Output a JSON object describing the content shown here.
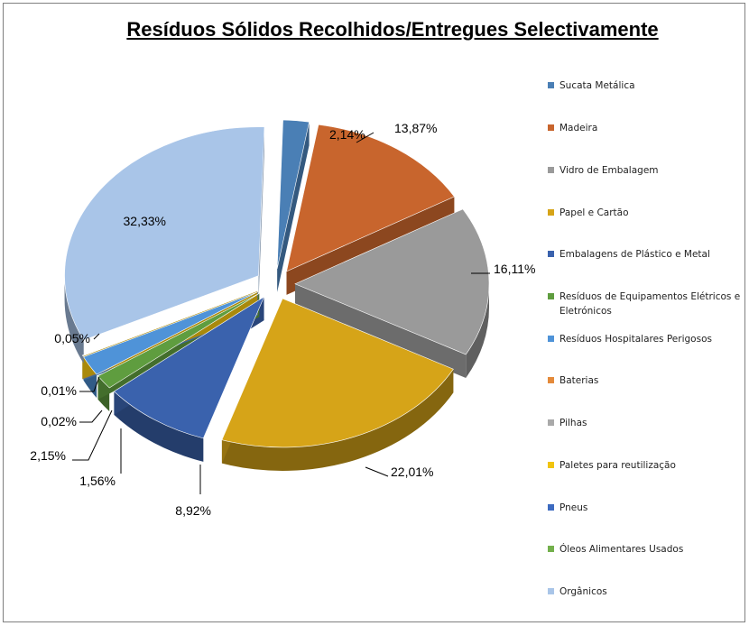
{
  "colors": {
    "Sucata Metálica": "#4a7fb5",
    "Madeira": "#c8652d",
    "Vidro de Embalagem": "#9a9a9a",
    "Papel e Cartão": "#d6a418",
    "Embalagens de Plástico e Metal": "#3a62ad",
    "Resíduos de Equipamentos Elétricos e Eletrónicos": "#5f9d3f",
    "Resíduos Hospitalares Perigosos": "#4f93d8",
    "Baterias": "#e48a3a",
    "Pilhas": "#a9a9a9",
    "Paletes para reutilização": "#f1c40f",
    "Pneus": "#3d6bc0",
    "Óleos Alimentares Usados": "#73b04c",
    "Orgânicos": "#a9c5e8"
  },
  "chart_data": {
    "type": "pie",
    "title": "Resíduos Sólidos Recolhidos/Entregues Selectivamente",
    "legend_position": "right",
    "exploded": true,
    "three_d": true,
    "slices": [
      {
        "label": "Sucata Metálica",
        "value": 2.14,
        "data_label": "2,14%"
      },
      {
        "label": "Madeira",
        "value": 13.87,
        "data_label": "13,87%"
      },
      {
        "label": "Vidro de Embalagem",
        "value": 16.11,
        "data_label": "16,11%"
      },
      {
        "label": "Papel e Cartão",
        "value": 22.01,
        "data_label": "22,01%"
      },
      {
        "label": "Embalagens de Plástico e Metal",
        "value": 8.92,
        "data_label": "8,92%"
      },
      {
        "label": "Resíduos de Equipamentos Elétricos e Eletrónicos",
        "value": 1.56,
        "data_label": "1,56%"
      },
      {
        "label": "Resíduos Hospitalares Perigosos",
        "value": 2.15,
        "data_label": "2,15%"
      },
      {
        "label": "Baterias",
        "value": 0.02,
        "data_label": "0,02%"
      },
      {
        "label": "Pilhas",
        "value": 0.01,
        "data_label": "0,01%"
      },
      {
        "label": "Paletes para reutilização",
        "value": 0.05,
        "data_label": "0,05%"
      },
      {
        "label": "Pneus",
        "value": 0.0,
        "data_label": ""
      },
      {
        "label": "Óleos Alimentares Usados",
        "value": 0.0,
        "data_label": ""
      },
      {
        "label": "Orgânicos",
        "value": 32.33,
        "data_label": "32,33%"
      }
    ]
  },
  "legend_labels": {
    "sucata": "Sucata Metálica",
    "madeira": "Madeira",
    "vidro": "Vidro de Embalagem",
    "papel": "Papel e Cartão",
    "embalagens": "Embalagens de Plástico e Metal",
    "reee": "Resíduos de Equipamentos Elétricos e Eletrónicos",
    "hospitalares": "Resíduos Hospitalares Perigosos",
    "baterias": "Baterias",
    "pilhas": "Pilhas",
    "paletes": "Paletes para reutilização",
    "pneus": "Pneus",
    "oleos": "Óleos Alimentares Usados",
    "organicos": "Orgânicos"
  }
}
